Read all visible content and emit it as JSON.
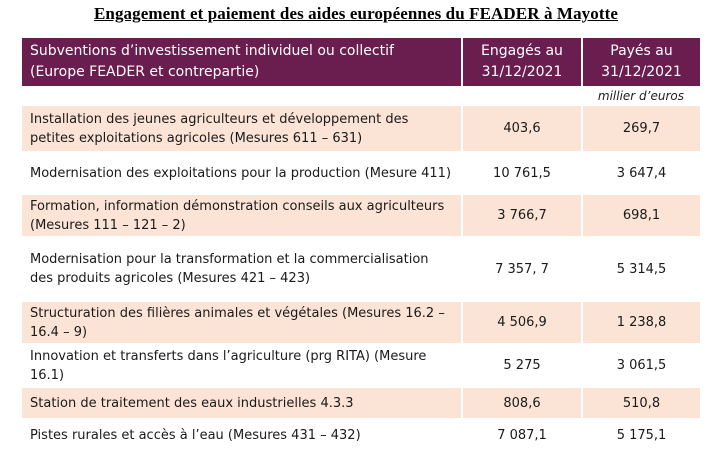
{
  "title": "Engagement et paiement des aides européennes du FEADER à Mayotte",
  "header": {
    "col1": "Subventions d’investissement individuel ou collectif (Europe FEADER et contrepartie)",
    "col2": "Engagés au 31/12/2021",
    "col3": "Payés au 31/12/2021"
  },
  "unit": "millier d’euros",
  "rows": [
    {
      "label": "Installation des jeunes agriculteurs et développement des petites exploitations agricoles (Mesures 611 – 631)",
      "engaged": "403,6",
      "paid": "269,7"
    },
    {
      "label": "Modernisation des exploitations pour la production (Mesure 411)",
      "engaged": "10 761,5",
      "paid": "3 647,4"
    },
    {
      "label": "Formation, information démonstration conseils aux agriculteurs (Mesures 111 – 121 – 2)",
      "engaged": "3 766,7",
      "paid": "698,1"
    },
    {
      "label": "Modernisation pour la transformation et la commercialisation des produits agricoles (Mesures 421 – 423)",
      "engaged": "7 357, 7",
      "paid": "5 314,5"
    },
    {
      "label": "Structuration des filières animales et végétales (Mesures 16.2 – 16.4 – 9)",
      "engaged": "4 506,9",
      "paid": "1 238,8"
    },
    {
      "label": "Innovation et transferts dans l’agriculture (prg RITA) (Mesure 16.1)",
      "engaged": "5 275",
      "paid": "3 061,5"
    },
    {
      "label": "Station de traitement des eaux industrielles 4.3.3",
      "engaged": "808,6",
      "paid": "510,8"
    },
    {
      "label": "Pistes rurales et accès à l’eau (Mesures 431 – 432)",
      "engaged": "7 087,1",
      "paid": "5 175,1"
    }
  ]
}
